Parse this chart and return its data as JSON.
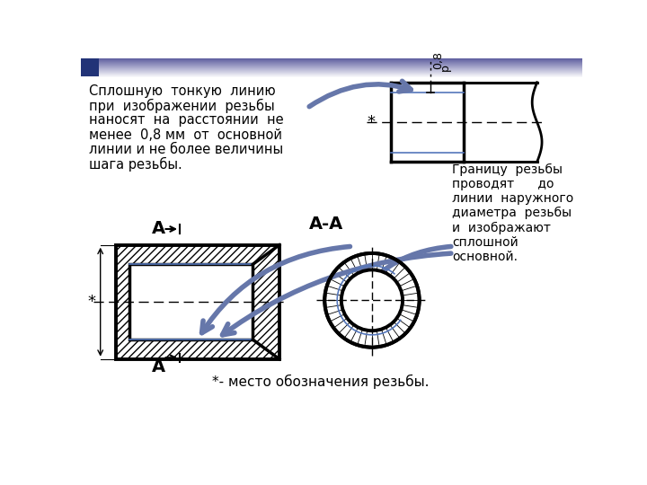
{
  "bg_color": "#ffffff",
  "arrow_color": "#6677aa",
  "text_color": "#000000",
  "blue_line_color": "#5577bb",
  "black": "#000000",
  "title_lines": [
    "Сплошную  тонкую  линию",
    "при  изображении  резьбы",
    "наносят  на  расстоянии  не",
    "менее  0,8 мм  от  основной",
    "линии и не более величины",
    "шага резьбы."
  ],
  "label_aa": "А-А",
  "label_a": "А",
  "label_star": "*",
  "label_08": "0,8",
  "label_p": "р",
  "label_footnote": "*- место обозначения резьбы.",
  "right_text_lines": [
    "Границу  резьбы",
    "проводят      до",
    "линии  наружного",
    "диаметра  резьбы",
    "и  изображают",
    "сплошной",
    "основной."
  ]
}
